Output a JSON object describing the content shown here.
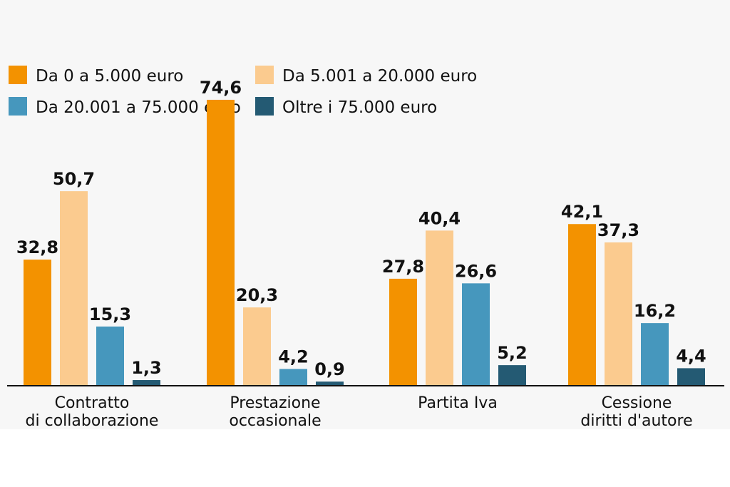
{
  "chart_data": {
    "type": "bar",
    "categories": [
      [
        "Contratto",
        "di collaborazione"
      ],
      [
        "Prestazione",
        "occasionale"
      ],
      [
        "Partita Iva"
      ],
      [
        "Cessione",
        "diritti d'autore"
      ]
    ],
    "series": [
      {
        "name": "Da 0 a 5.000 euro",
        "color": "#f39200",
        "values": [
          32.8,
          74.6,
          27.8,
          42.1
        ],
        "labels": [
          "32,8",
          "74,6",
          "27,8",
          "42,1"
        ]
      },
      {
        "name": "Da 5.001 a 20.000 euro",
        "color": "#fbcb8f",
        "values": [
          50.7,
          20.3,
          40.4,
          37.3
        ],
        "labels": [
          "50,7",
          "20,3",
          "40,4",
          "37,3"
        ]
      },
      {
        "name": "Da 20.001 a 75.000 euro",
        "color": "#4697bd",
        "values": [
          15.3,
          4.2,
          26.6,
          16.2
        ],
        "labels": [
          "15,3",
          "4,2",
          "26,6",
          "16,2"
        ]
      },
      {
        "name": "Oltre i 75.000 euro",
        "color": "#245a73",
        "values": [
          1.3,
          0.9,
          5.2,
          4.4
        ],
        "labels": [
          "1,3",
          "0,9",
          "5,2",
          "4,4"
        ]
      }
    ],
    "title": "",
    "xlabel": "",
    "ylabel": "",
    "ylim": [
      0,
      80
    ],
    "grid": false,
    "legend": "top-left"
  }
}
